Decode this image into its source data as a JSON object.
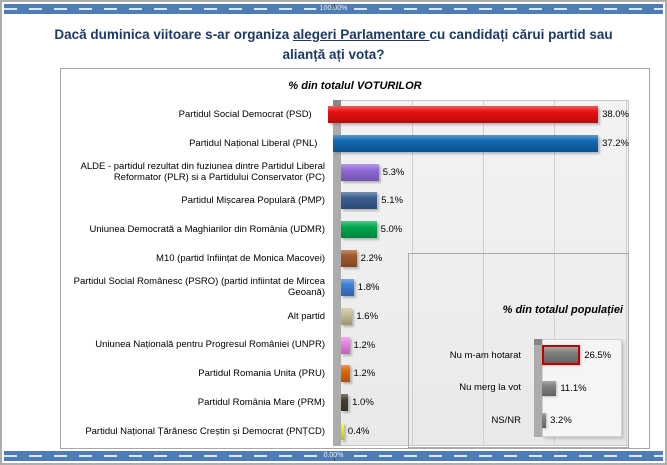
{
  "window": {
    "top_strip_label": "100.00%",
    "bottom_strip_label": "0.00%"
  },
  "title": {
    "pre": "Dacă duminica viitoare s-ar organiza ",
    "underlined": "alegeri Parlamentare ",
    "post": "cu candidați cărui partid sau alianță ați vota?"
  },
  "chart_data": [
    {
      "type": "bar",
      "orientation": "horizontal",
      "title": "% din totalul VOTURILOR",
      "categories": [
        "Partidul Social Democrat (PSD)",
        "Partidul Național Liberal (PNL)",
        "ALDE - partidul rezultat din fuziunea dintre Partidul Liberal Reformator (PLR) si a Partidului Conservator (PC)",
        "Partidul Mișcarea Populară (PMP)",
        "Uniunea Democrată a Maghiarilor din România (UDMR)",
        "M10 (partid înființat de Monica Macovei)",
        "Partidul Social Românesc (PSRO) (partid infiintat de Mircea Geoană)",
        "Alt partid",
        "Uniunea Națională pentru Progresul României (UNPR)",
        "Partidul Romania Unita (PRU)",
        "Partidul România Mare (PRM)",
        "Partidul Național Țărănesc Creștin și Democrat (PNȚCD)"
      ],
      "values": [
        38.0,
        37.2,
        5.3,
        5.1,
        5.0,
        2.2,
        1.8,
        1.6,
        1.2,
        1.2,
        1.0,
        0.4
      ],
      "value_labels": [
        "38.0%",
        "37.2%",
        "5.3%",
        "5.1%",
        "5.0%",
        "2.2%",
        "1.8%",
        "1.6%",
        "1.2%",
        "1.2%",
        "1.0%",
        "0.4%"
      ],
      "bar_colors": [
        "#E80F0F",
        "#1268B3",
        "#8F6BD9",
        "#3A5F92",
        "#00A84E",
        "#A05A2C",
        "#3E7FD4",
        "#C7BE93",
        "#EE82E6",
        "#E2660C",
        "#453F2A",
        "#F2F200"
      ],
      "xlim": [
        0,
        40.2
      ],
      "gridlines": [
        10,
        20,
        30,
        40
      ],
      "grid": true,
      "legend": false
    },
    {
      "type": "bar",
      "orientation": "horizontal",
      "title": "% din totalul populației",
      "categories": [
        "Nu m-am hotarat",
        "Nu merg la vot",
        "NS/NR"
      ],
      "values": [
        26.5,
        11.1,
        3.2
      ],
      "value_labels": [
        "26.5%",
        "11.1%",
        "3.2%"
      ],
      "bar_colors": [
        "#7F7F7F",
        "#7F7F7F",
        "#7F7F7F"
      ],
      "highlighted_index": 0,
      "highlight_border_color": "#C00000",
      "xlim": [
        0,
        62
      ],
      "gridlines": [],
      "grid": false,
      "legend": false
    }
  ]
}
